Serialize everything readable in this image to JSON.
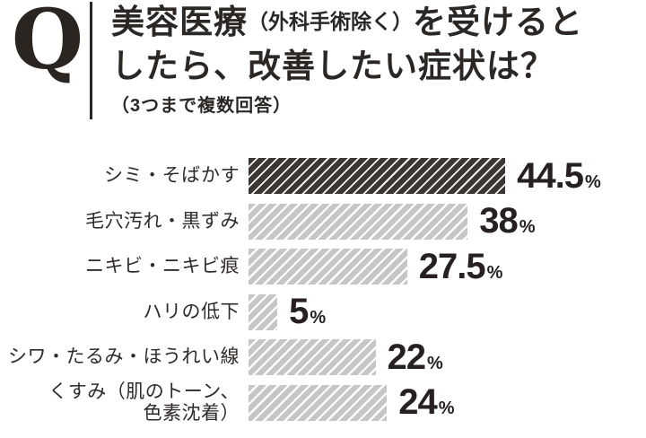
{
  "header": {
    "q_label": "Q",
    "title_line1_part1": "美容医療",
    "title_line1_small": "（外科手術除く）",
    "title_line1_part2": "を受けると",
    "title_line2": "したら、改善したい症状は？",
    "subtitle": "（3つまで複数回答）"
  },
  "chart_data": {
    "type": "bar",
    "orientation": "horizontal",
    "title": "美容医療（外科手術除く）を受けるとしたら、改善したい症状は？",
    "subtitle": "（3つまで複数回答）",
    "categories": [
      "シミ・そばかす",
      "毛穴汚れ・黒ずみ",
      "ニキビ・ニキビ痕",
      "ハリの低下",
      "シワ・たるみ・ほうれい線",
      "くすみ（肌のトーン、色素沈着）"
    ],
    "label_lines": [
      [
        "シミ・そばかす"
      ],
      [
        "毛穴汚れ・黒ずみ"
      ],
      [
        "ニキビ・ニキビ痕"
      ],
      [
        "ハリの低下"
      ],
      [
        "シワ・たるみ・ほうれい線"
      ],
      [
        "くすみ（肌のトーン、",
        "色素沈着）"
      ]
    ],
    "values": [
      44.5,
      38,
      27.5,
      5,
      22,
      24
    ],
    "value_labels": [
      "44.5",
      "38",
      "27.5",
      "5",
      "22",
      "24"
    ],
    "unit": "%",
    "axis_max": 50,
    "grid": false,
    "legend": false,
    "highlight_index": 0,
    "colors": {
      "highlight_bar": "#3b3533",
      "bar": "#c6c6c6",
      "stripe": "#ffffff",
      "text": "#2b2725"
    }
  }
}
